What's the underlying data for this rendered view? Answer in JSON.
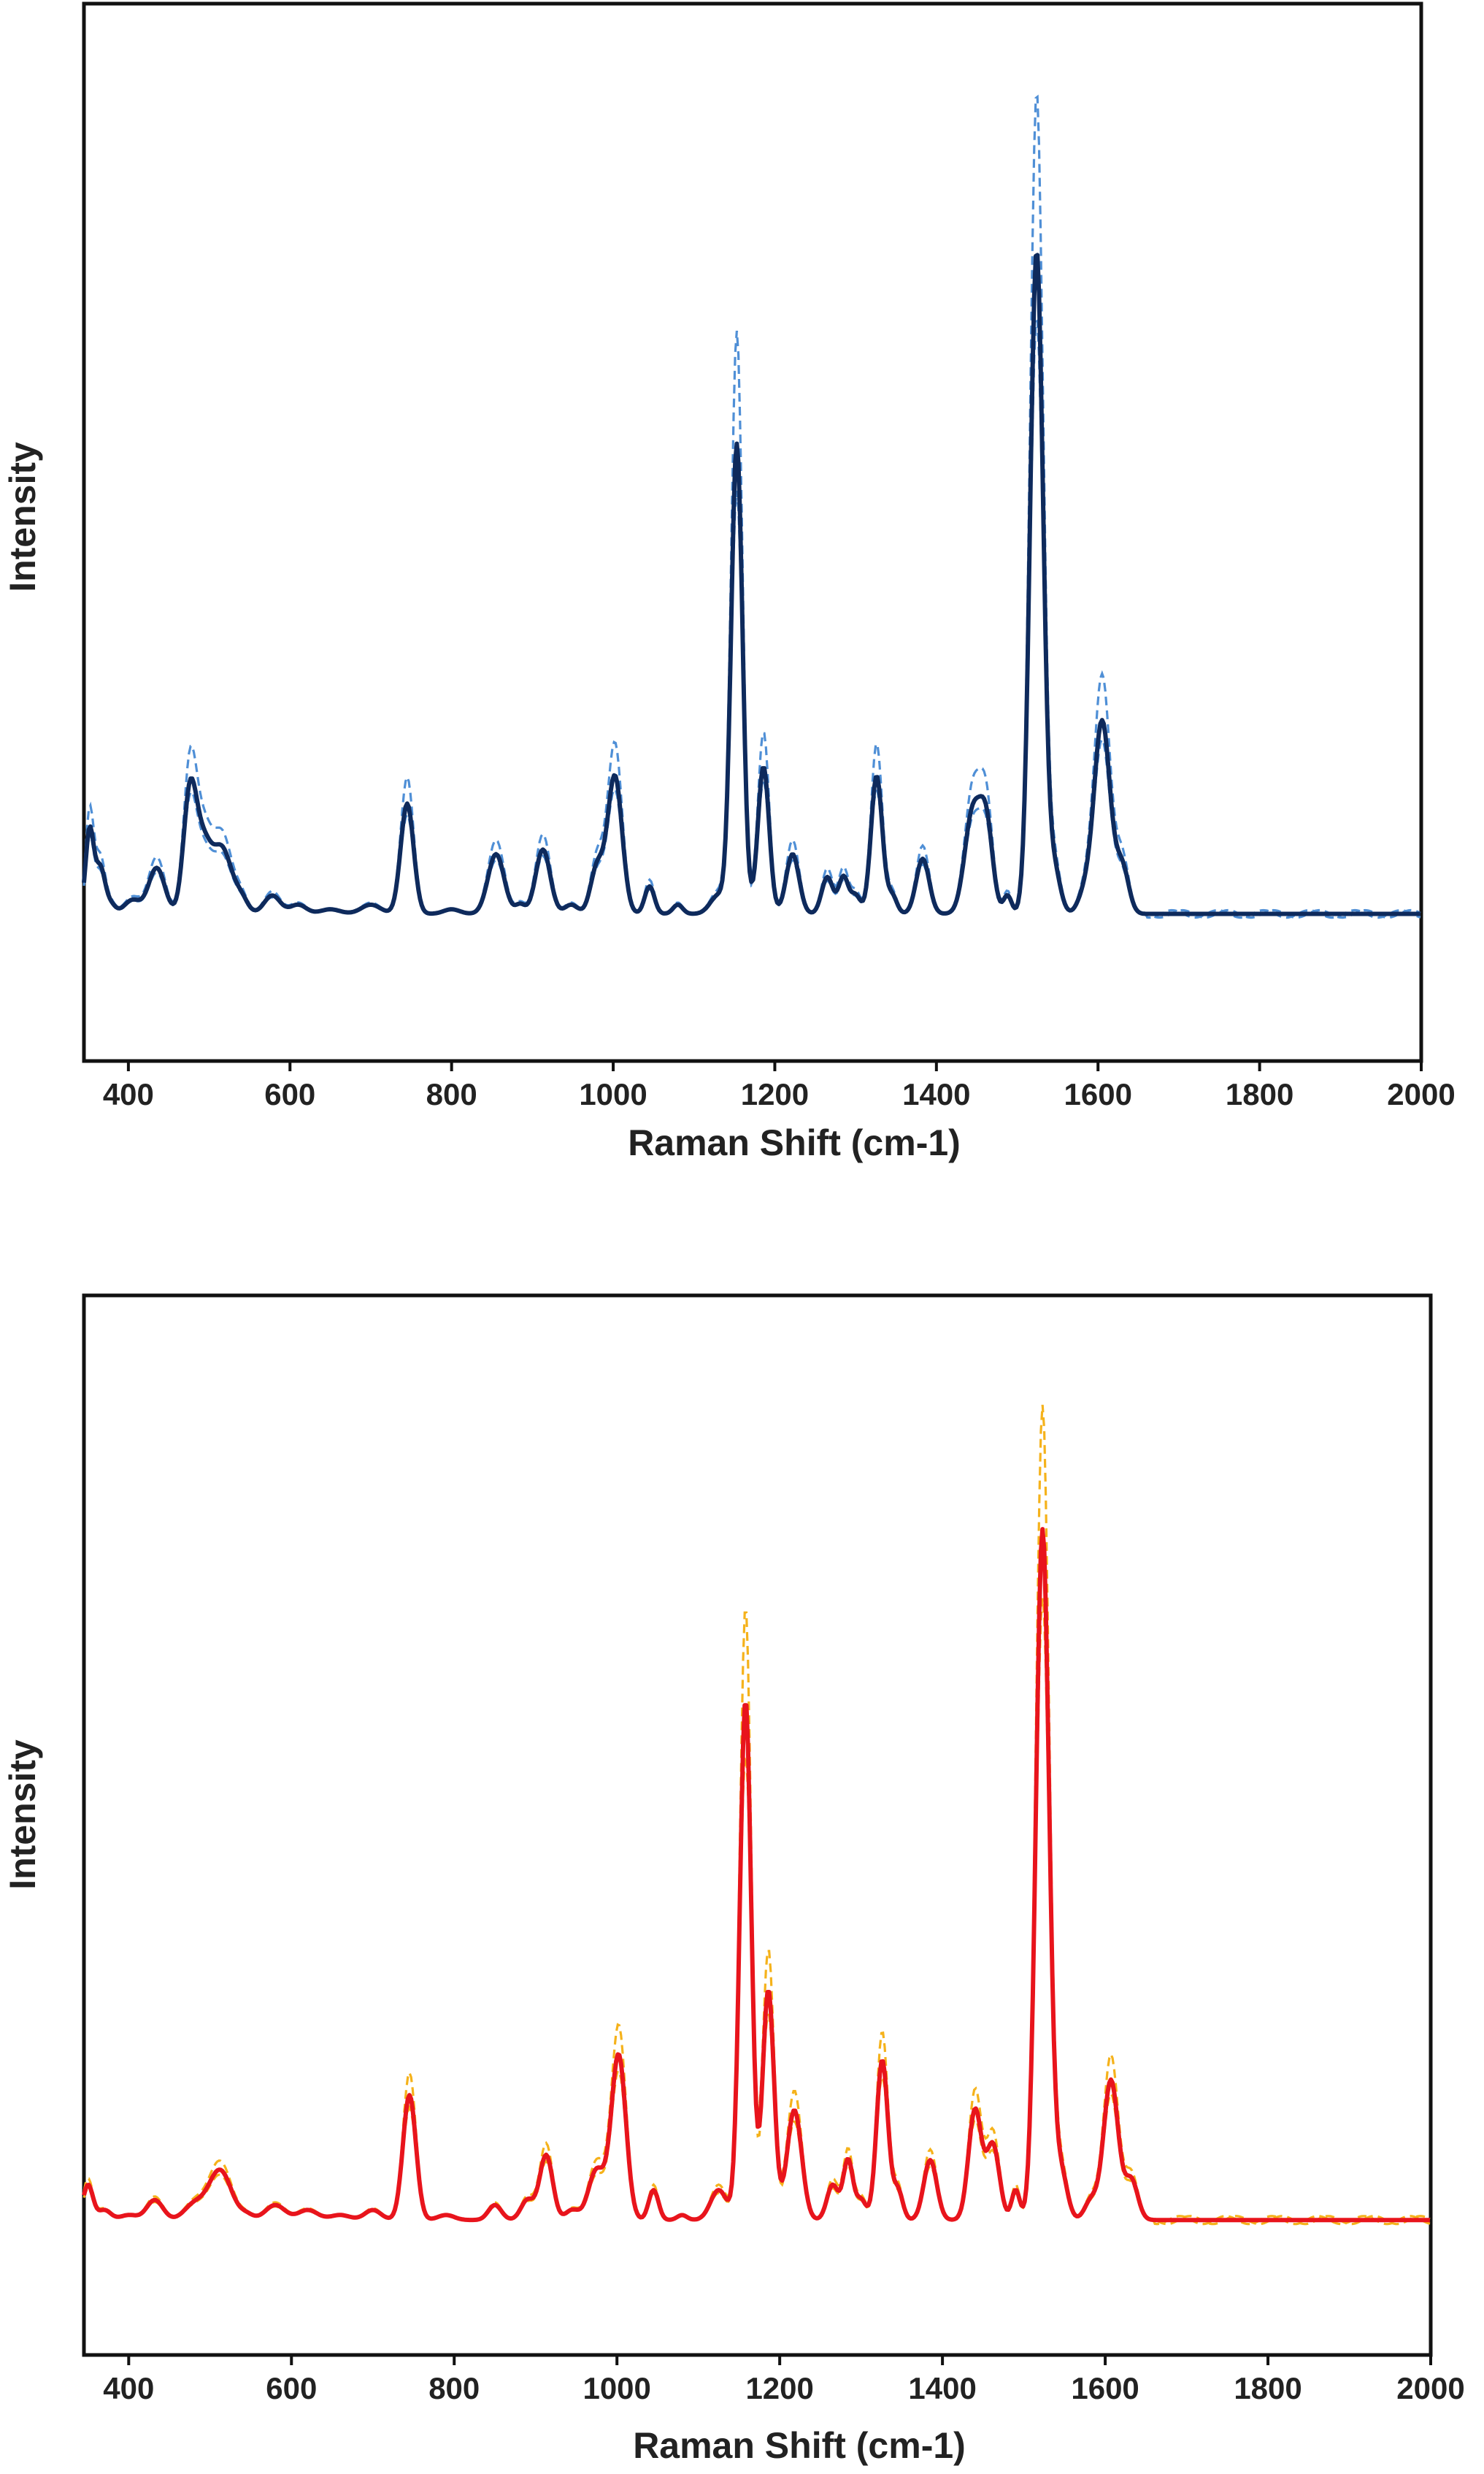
{
  "chart_data": [
    {
      "type": "line",
      "xlabel": "Raman Shift (cm-1)",
      "ylabel": "Intensity",
      "xlim": [
        345,
        2000
      ],
      "ylim": [
        -0.15,
        1.0
      ],
      "xticks": [
        400,
        600,
        800,
        1000,
        1200,
        1400,
        1600,
        1800,
        2000
      ],
      "y_tick_labels": false,
      "grid": false,
      "legend": "none",
      "colors": {
        "mean": "#0e2a5c",
        "bounds": "#4f8fd6"
      },
      "baseline": 0.01,
      "peaks": [
        [
          352,
          0.09,
          5
        ],
        [
          365,
          0.05,
          6
        ],
        [
          378,
          0.01,
          6
        ],
        [
          405,
          0.015,
          10
        ],
        [
          435,
          0.05,
          10
        ],
        [
          476,
          0.125,
          8
        ],
        [
          492,
          0.07,
          10
        ],
        [
          516,
          0.07,
          12
        ],
        [
          540,
          0.015,
          8
        ],
        [
          578,
          0.02,
          10
        ],
        [
          610,
          0.01,
          10
        ],
        [
          650,
          0.005,
          12
        ],
        [
          700,
          0.01,
          12
        ],
        [
          745,
          0.12,
          8
        ],
        [
          800,
          0.005,
          10
        ],
        [
          855,
          0.065,
          10
        ],
        [
          885,
          0.01,
          6
        ],
        [
          913,
          0.07,
          9
        ],
        [
          948,
          0.01,
          8
        ],
        [
          980,
          0.05,
          8
        ],
        [
          1002,
          0.15,
          9
        ],
        [
          1045,
          0.03,
          6
        ],
        [
          1080,
          0.01,
          6
        ],
        [
          1130,
          0.02,
          10
        ],
        [
          1153,
          0.51,
          7
        ],
        [
          1186,
          0.16,
          7
        ],
        [
          1222,
          0.065,
          8
        ],
        [
          1265,
          0.04,
          7
        ],
        [
          1285,
          0.04,
          6
        ],
        [
          1300,
          0.02,
          6
        ],
        [
          1326,
          0.15,
          7
        ],
        [
          1345,
          0.02,
          6
        ],
        [
          1383,
          0.06,
          8
        ],
        [
          1445,
          0.11,
          10
        ],
        [
          1462,
          0.09,
          8
        ],
        [
          1488,
          0.02,
          5
        ],
        [
          1524,
          0.72,
          8
        ],
        [
          1545,
          0.05,
          8
        ],
        [
          1583,
          0.02,
          8
        ],
        [
          1605,
          0.21,
          10
        ],
        [
          1630,
          0.05,
          8
        ]
      ],
      "lower_scale": 0.9,
      "upper_scale": 1.24
    },
    {
      "type": "line",
      "xlabel": "Raman Shift (cm-1)",
      "ylabel": "Intensity",
      "xlim": [
        345,
        2000
      ],
      "ylim": [
        -0.13,
        0.93
      ],
      "xticks": [
        400,
        600,
        800,
        1000,
        1200,
        1400,
        1600,
        1800,
        2000
      ],
      "y_tick_labels": false,
      "grid": false,
      "legend": "none",
      "colors": {
        "mean": "#e8141c",
        "bounds": "#f5b21b"
      },
      "baseline": 0.005,
      "peaks": [
        [
          350,
          0.035,
          6
        ],
        [
          370,
          0.01,
          8
        ],
        [
          400,
          0.005,
          10
        ],
        [
          432,
          0.02,
          10
        ],
        [
          480,
          0.015,
          12
        ],
        [
          512,
          0.05,
          14
        ],
        [
          545,
          0.005,
          8
        ],
        [
          580,
          0.015,
          12
        ],
        [
          620,
          0.01,
          12
        ],
        [
          660,
          0.005,
          12
        ],
        [
          700,
          0.01,
          10
        ],
        [
          745,
          0.125,
          8
        ],
        [
          790,
          0.005,
          10
        ],
        [
          850,
          0.015,
          8
        ],
        [
          890,
          0.02,
          8
        ],
        [
          913,
          0.065,
          8
        ],
        [
          945,
          0.01,
          8
        ],
        [
          975,
          0.05,
          10
        ],
        [
          1002,
          0.165,
          9
        ],
        [
          1045,
          0.03,
          6
        ],
        [
          1080,
          0.005,
          6
        ],
        [
          1125,
          0.03,
          10
        ],
        [
          1158,
          0.52,
          7
        ],
        [
          1186,
          0.23,
          7
        ],
        [
          1218,
          0.11,
          9
        ],
        [
          1265,
          0.035,
          7
        ],
        [
          1284,
          0.06,
          6
        ],
        [
          1300,
          0.02,
          6
        ],
        [
          1326,
          0.16,
          7
        ],
        [
          1345,
          0.03,
          6
        ],
        [
          1385,
          0.06,
          8
        ],
        [
          1440,
          0.11,
          8
        ],
        [
          1462,
          0.075,
          8
        ],
        [
          1490,
          0.03,
          5
        ],
        [
          1523,
          0.69,
          8
        ],
        [
          1545,
          0.05,
          8
        ],
        [
          1583,
          0.02,
          8
        ],
        [
          1607,
          0.14,
          9
        ],
        [
          1632,
          0.04,
          8
        ]
      ],
      "lower_scale": 0.9,
      "upper_scale": 1.18
    }
  ]
}
